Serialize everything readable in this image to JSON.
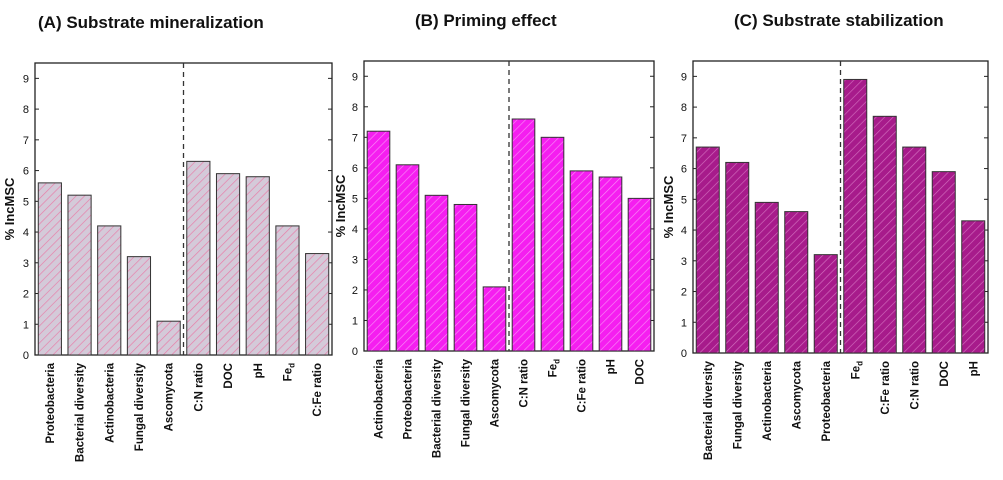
{
  "chart_data": [
    {
      "type": "bar",
      "title": "(A) Substrate mineralization",
      "ylabel": "% IncMSC",
      "xlabel": "",
      "ylim": [
        0,
        9.5
      ],
      "yticks": [
        0,
        1,
        2,
        3,
        4,
        5,
        6,
        7,
        8,
        9
      ],
      "categories": [
        "Proteobacteria",
        "Bacterial diversity",
        "Actinobacteria",
        "Fungal diversity",
        "Ascomycota",
        "C:N ratio",
        "DOC",
        "pH",
        "Fed",
        "C:Fe ratio"
      ],
      "category_display": [
        {
          "main": "Proteobacteria",
          "sub": ""
        },
        {
          "main": "Bacterial diversity",
          "sub": ""
        },
        {
          "main": "Actinobacteria",
          "sub": ""
        },
        {
          "main": "Fungal diversity",
          "sub": ""
        },
        {
          "main": "Ascomycota",
          "sub": ""
        },
        {
          "main": "C:N ratio",
          "sub": ""
        },
        {
          "main": "DOC",
          "sub": ""
        },
        {
          "main": "pH",
          "sub": ""
        },
        {
          "main": "Fe",
          "sub": "d"
        },
        {
          "main": "C:Fe ratio",
          "sub": ""
        }
      ],
      "values": [
        5.6,
        5.2,
        4.2,
        3.2,
        1.1,
        6.3,
        5.9,
        5.8,
        4.2,
        3.3
      ],
      "divider_after_index": 4,
      "bar_fill": "#d4cad9",
      "hatch_color": "#e97aa6",
      "bar_stroke": "#333333"
    },
    {
      "type": "bar",
      "title": "(B) Priming effect",
      "ylabel": "% IncMSC",
      "xlabel": "",
      "ylim": [
        0,
        9.5
      ],
      "yticks": [
        0,
        1,
        2,
        3,
        4,
        5,
        6,
        7,
        8,
        9
      ],
      "categories": [
        "Actinobacteria",
        "Proteobacteria",
        "Bacterial diversity",
        "Fungal diversity",
        "Ascomycota",
        "C:N ratio",
        "Fed",
        "C:Fe ratio",
        "pH",
        "DOC"
      ],
      "category_display": [
        {
          "main": "Actinobacteria",
          "sub": ""
        },
        {
          "main": "Proteobacteria",
          "sub": ""
        },
        {
          "main": "Bacterial diversity",
          "sub": ""
        },
        {
          "main": "Fungal diversity",
          "sub": ""
        },
        {
          "main": "Ascomycota",
          "sub": ""
        },
        {
          "main": "C:N ratio",
          "sub": ""
        },
        {
          "main": "Fe",
          "sub": "d"
        },
        {
          "main": "C:Fe ratio",
          "sub": ""
        },
        {
          "main": "pH",
          "sub": ""
        },
        {
          "main": "DOC",
          "sub": ""
        }
      ],
      "values": [
        7.2,
        6.1,
        5.1,
        4.8,
        2.1,
        7.6,
        7.0,
        5.9,
        5.7,
        5.0
      ],
      "divider_after_index": 4,
      "bar_fill": "#f51ef0",
      "hatch_color": "#f98cf6",
      "bar_stroke": "#333333"
    },
    {
      "type": "bar",
      "title": "(C) Substrate stabilization",
      "ylabel": "% IncMSC",
      "xlabel": "",
      "ylim": [
        0,
        9.5
      ],
      "yticks": [
        0,
        1,
        2,
        3,
        4,
        5,
        6,
        7,
        8,
        9
      ],
      "categories": [
        "Bacterial diversity",
        "Fungal diversity",
        "Actinobacteria",
        "Ascomycota",
        "Proteobacteria",
        "Fed",
        "C:Fe ratio",
        "C:N ratio",
        "DOC",
        "pH"
      ],
      "category_display": [
        {
          "main": "Bacterial diversity",
          "sub": ""
        },
        {
          "main": "Fungal diversity",
          "sub": ""
        },
        {
          "main": "Actinobacteria",
          "sub": ""
        },
        {
          "main": "Ascomycota",
          "sub": ""
        },
        {
          "main": "Proteobacteria",
          "sub": ""
        },
        {
          "main": "Fe",
          "sub": "d"
        },
        {
          "main": "C:Fe ratio",
          "sub": ""
        },
        {
          "main": "C:N ratio",
          "sub": ""
        },
        {
          "main": "DOC",
          "sub": ""
        },
        {
          "main": "pH",
          "sub": ""
        }
      ],
      "values": [
        6.7,
        6.2,
        4.9,
        4.6,
        3.2,
        8.9,
        7.7,
        6.7,
        5.9,
        4.3
      ],
      "divider_after_index": 4,
      "bar_fill": "#a71b8b",
      "hatch_color": "#d36fbf",
      "bar_stroke": "#333333"
    }
  ]
}
